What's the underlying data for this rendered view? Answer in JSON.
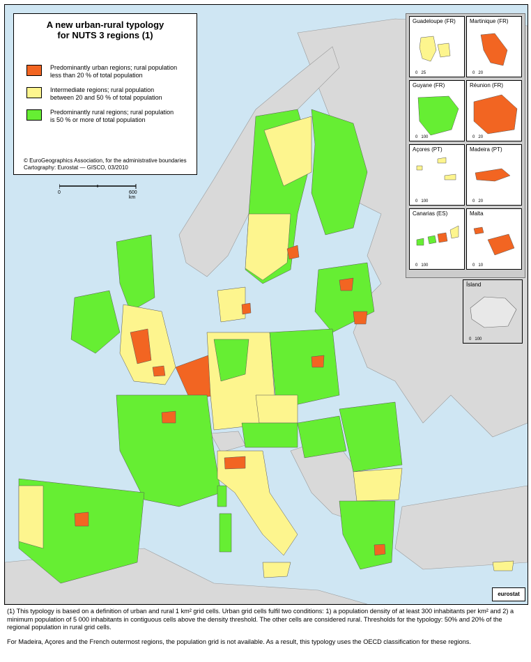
{
  "legend": {
    "title_line1": "A new urban-rural typology",
    "title_line2": "for NUTS 3 regions (1)",
    "items": [
      {
        "label_line1": "Predominantly urban regions; rural population",
        "label_line2": "less than 20 % of total population",
        "color": "#f26522"
      },
      {
        "label_line1": "Intermediate regions; rural population",
        "label_line2": "between 20 and 50 % of total population",
        "color": "#fdf58e"
      },
      {
        "label_line1": "Predominantly rural regions; rural population",
        "label_line2": "is 50 % or more of total population",
        "color": "#66ee33"
      }
    ],
    "credit_line1": "© EuroGeographics Association, for the administrative boundaries",
    "credit_line2": "Cartography: Eurostat — GISCO, 03/2010"
  },
  "scale": {
    "start": "0",
    "end": "600 km"
  },
  "insets": [
    {
      "name": "Guadeloupe (FR)",
      "scale_start": "0",
      "scale_end": "25"
    },
    {
      "name": "Martinique (FR)",
      "scale_start": "0",
      "scale_end": "20"
    },
    {
      "name": "Guyane (FR)",
      "scale_start": "0",
      "scale_end": "100"
    },
    {
      "name": "Réunion (FR)",
      "scale_start": "0",
      "scale_end": "20"
    },
    {
      "name": "Açores (PT)",
      "scale_start": "0",
      "scale_end": "100"
    },
    {
      "name": "Madeira (PT)",
      "scale_start": "0",
      "scale_end": "20"
    },
    {
      "name": "Canarias (ES)",
      "scale_start": "0",
      "scale_end": "100"
    },
    {
      "name": "Malta",
      "scale_start": "0",
      "scale_end": "10"
    },
    {
      "name": "Ísland",
      "scale_start": "0",
      "scale_end": "100"
    }
  ],
  "logo": "eurostat",
  "footnote": {
    "p1": "(1) This typology is based on a definition of urban and rural 1 km² grid cells. Urban grid cells fulfil two conditions: 1) a population density of at least 300 inhabitants per km²  and 2) a minimum population of 5 000 inhabitants in contiguous cells above the density threshold. The other cells are considered rural. Thresholds for the typology: 50% and 20% of the regional population in rural grid cells.",
    "p2": "For Madeira, Açores and the French outermost regions, the population grid is not available. As a result, this typology uses the OECD classification for these regions."
  },
  "colors": {
    "sea": "#cfe6f3",
    "non_eu": "#d9d9d9",
    "urban": "#f26522",
    "intermediate": "#fdf58e",
    "rural": "#66ee33"
  }
}
